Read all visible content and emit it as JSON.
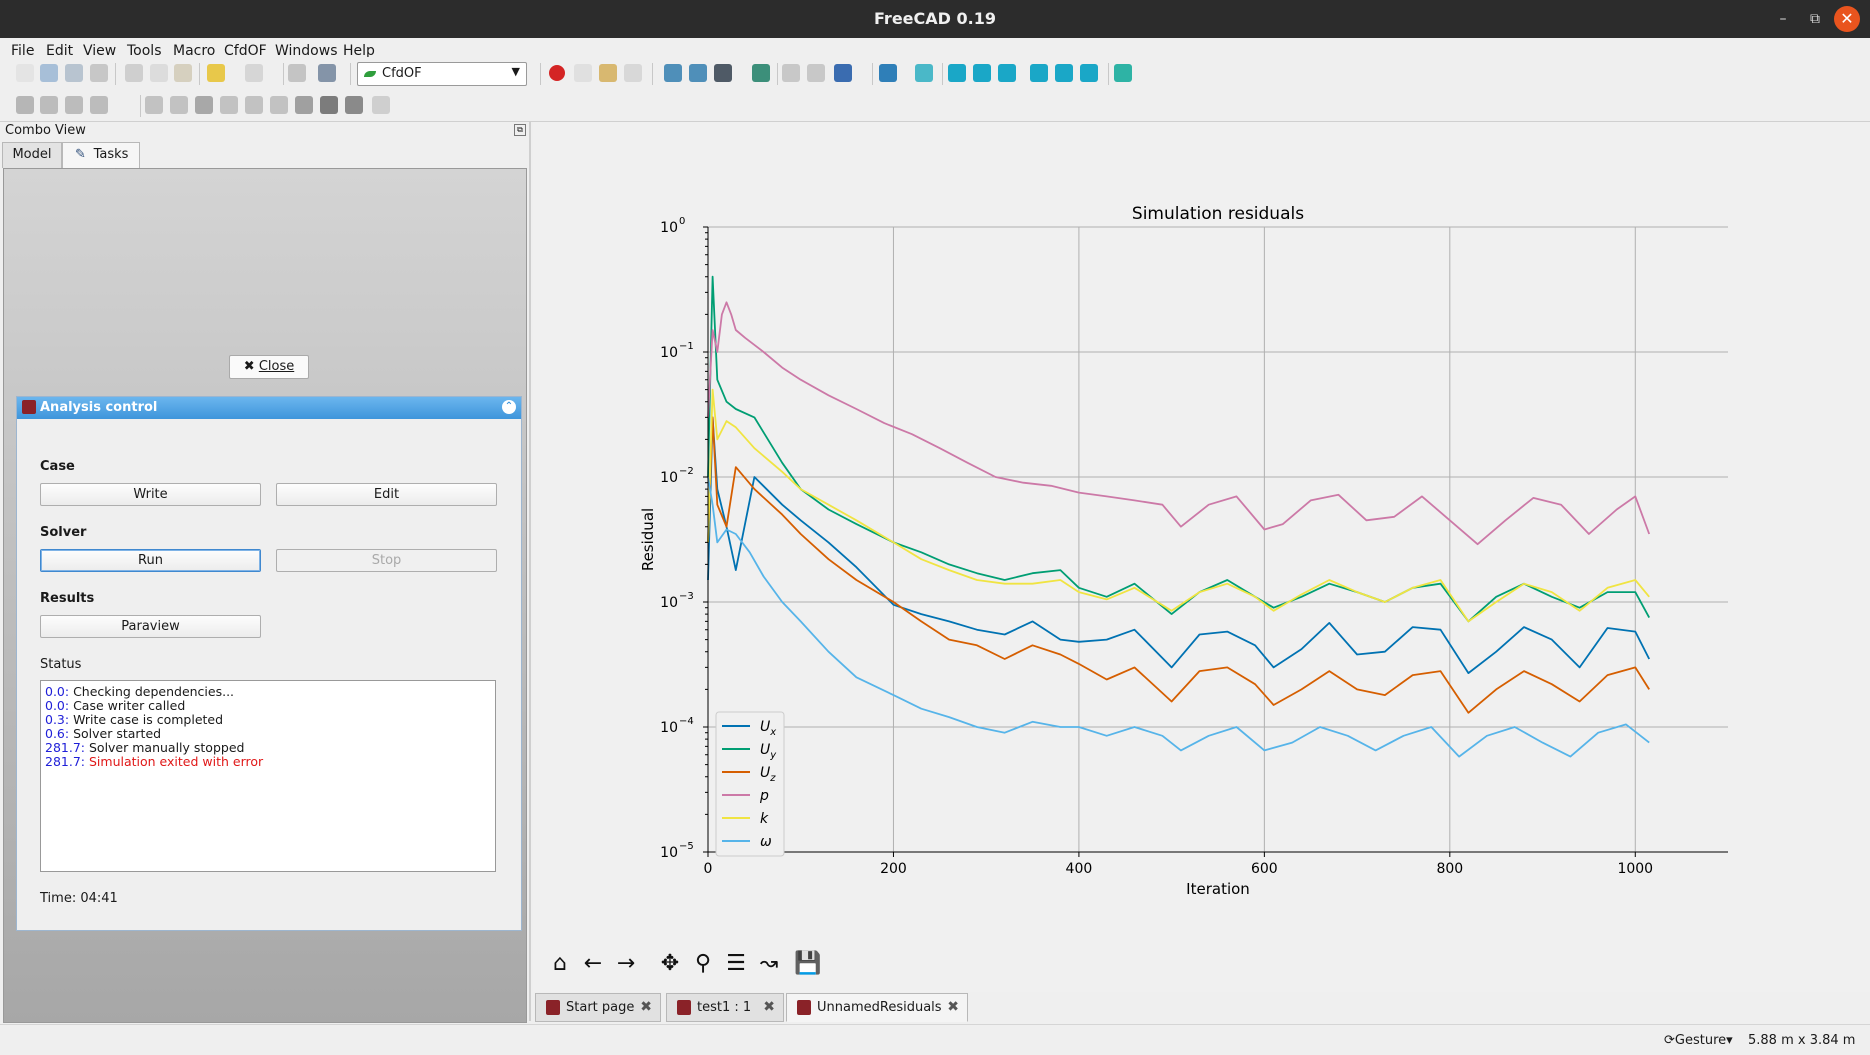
{
  "window": {
    "title": "FreeCAD 0.19"
  },
  "menu": [
    "File",
    "Edit",
    "View",
    "Tools",
    "Macro",
    "CfdOF",
    "Windows",
    "Help"
  ],
  "toolbar": {
    "workbench": "CfdOF"
  },
  "combo_view": {
    "title": "Combo View",
    "tabs": [
      {
        "label": "Model"
      },
      {
        "label": "Tasks"
      }
    ],
    "close_label": "Close"
  },
  "analysis": {
    "title": "Analysis control",
    "case_label": "Case",
    "write_label": "Write",
    "edit_label": "Edit",
    "solver_label": "Solver",
    "run_label": "Run",
    "stop_label": "Stop",
    "results_label": "Results",
    "paraview_label": "Paraview",
    "status_label": "Status",
    "status_lines": [
      {
        "t": "0.0:",
        "msg": "Checking dependencies...",
        "error": false
      },
      {
        "t": "0.0:",
        "msg": "Case writer called",
        "error": false
      },
      {
        "t": "0.3:",
        "msg": "Write case is completed",
        "error": false
      },
      {
        "t": "0.6:",
        "msg": "Solver started",
        "error": false
      },
      {
        "t": "281.7:",
        "msg": "Solver manually stopped",
        "error": false
      },
      {
        "t": "281.7:",
        "msg": "Simulation exited with error",
        "error": true
      }
    ],
    "time_label": "Time: 04:41"
  },
  "doc_tabs": [
    {
      "label": "Start page",
      "active": false
    },
    {
      "label": "test1 : 1",
      "active": false
    },
    {
      "label": "UnnamedResiduals",
      "active": true
    }
  ],
  "statusbar": {
    "navigation": "Gesture",
    "dimensions": "5.88 m x 3.84 m"
  },
  "chart_data": {
    "type": "line",
    "title": "Simulation residuals",
    "xlabel": "Iteration",
    "ylabel": "Residual",
    "xlim": [
      0,
      1100
    ],
    "ylim": [
      1e-05,
      1
    ],
    "yscale": "log",
    "xticks": [
      0,
      200,
      400,
      600,
      800,
      1000
    ],
    "yticks": [
      {
        "base": "10",
        "exp": "0",
        "v": 1
      },
      {
        "base": "10",
        "exp": "−1",
        "v": 0.1
      },
      {
        "base": "10",
        "exp": "−2",
        "v": 0.01
      },
      {
        "base": "10",
        "exp": "−3",
        "v": 0.001
      },
      {
        "base": "10",
        "exp": "−4",
        "v": 0.0001
      },
      {
        "base": "10",
        "exp": "−5",
        "v": 1e-05
      }
    ],
    "grid": true,
    "legend_position": "lower-left",
    "series": [
      {
        "name": "Ux",
        "sym": "U",
        "sub": "x",
        "color": "#0072b2",
        "x": [
          0,
          5,
          10,
          20,
          30,
          50,
          80,
          100,
          130,
          160,
          200,
          230,
          260,
          290,
          320,
          350,
          380,
          400,
          430,
          460,
          500,
          530,
          560,
          590,
          610,
          640,
          670,
          700,
          730,
          760,
          790,
          820,
          850,
          880,
          910,
          940,
          970,
          1000,
          1015
        ],
        "y": [
          0.0015,
          0.03,
          0.008,
          0.004,
          0.0018,
          0.01,
          0.006,
          0.0045,
          0.003,
          0.0019,
          0.00095,
          0.0008,
          0.0007,
          0.0006,
          0.00055,
          0.0007,
          0.0005,
          0.00048,
          0.0005,
          0.0006,
          0.0003,
          0.00055,
          0.00058,
          0.00045,
          0.0003,
          0.00042,
          0.00068,
          0.00038,
          0.0004,
          0.00063,
          0.0006,
          0.00027,
          0.0004,
          0.00063,
          0.0005,
          0.0003,
          0.00062,
          0.00058,
          0.00035
        ]
      },
      {
        "name": "Uy",
        "sym": "U",
        "sub": "y",
        "color": "#009e73",
        "x": [
          0,
          5,
          10,
          20,
          30,
          50,
          80,
          100,
          130,
          160,
          200,
          230,
          260,
          290,
          320,
          350,
          380,
          400,
          430,
          460,
          500,
          530,
          560,
          590,
          610,
          640,
          670,
          700,
          730,
          760,
          790,
          820,
          850,
          880,
          910,
          940,
          970,
          1000,
          1015
        ],
        "y": [
          0.01,
          0.4,
          0.06,
          0.04,
          0.035,
          0.03,
          0.013,
          0.008,
          0.0055,
          0.0042,
          0.003,
          0.0025,
          0.002,
          0.0017,
          0.0015,
          0.0017,
          0.0018,
          0.0013,
          0.0011,
          0.0014,
          0.0008,
          0.0012,
          0.0015,
          0.0011,
          0.0009,
          0.0011,
          0.0014,
          0.0012,
          0.001,
          0.0013,
          0.0014,
          0.0007,
          0.0011,
          0.0014,
          0.0011,
          0.0009,
          0.0012,
          0.0012,
          0.00075
        ]
      },
      {
        "name": "Uz",
        "sym": "U",
        "sub": "z",
        "color": "#d55e00",
        "x": [
          0,
          5,
          10,
          20,
          30,
          50,
          80,
          100,
          130,
          160,
          200,
          230,
          260,
          290,
          320,
          350,
          380,
          400,
          430,
          460,
          500,
          530,
          560,
          590,
          610,
          640,
          670,
          700,
          730,
          760,
          790,
          820,
          850,
          880,
          910,
          940,
          970,
          1000,
          1015
        ],
        "y": [
          0.003,
          0.03,
          0.006,
          0.004,
          0.012,
          0.008,
          0.005,
          0.0035,
          0.0022,
          0.0015,
          0.001,
          0.0007,
          0.0005,
          0.00045,
          0.00035,
          0.00045,
          0.00038,
          0.00032,
          0.00024,
          0.0003,
          0.00016,
          0.00028,
          0.0003,
          0.00022,
          0.00015,
          0.0002,
          0.00028,
          0.0002,
          0.00018,
          0.00026,
          0.00028,
          0.00013,
          0.0002,
          0.00028,
          0.00022,
          0.00016,
          0.00026,
          0.0003,
          0.0002
        ]
      },
      {
        "name": "p",
        "sym": "p",
        "sub": "",
        "color": "#cc79a7",
        "x": [
          0,
          5,
          10,
          15,
          20,
          25,
          30,
          40,
          60,
          80,
          100,
          130,
          160,
          190,
          220,
          250,
          280,
          310,
          340,
          370,
          400,
          430,
          460,
          490,
          510,
          540,
          570,
          600,
          620,
          650,
          680,
          710,
          740,
          770,
          800,
          830,
          860,
          890,
          920,
          950,
          980,
          1000,
          1015
        ],
        "y": [
          0.03,
          0.15,
          0.1,
          0.2,
          0.25,
          0.2,
          0.15,
          0.13,
          0.1,
          0.075,
          0.06,
          0.045,
          0.035,
          0.027,
          0.022,
          0.017,
          0.013,
          0.01,
          0.009,
          0.0085,
          0.0075,
          0.007,
          0.0065,
          0.006,
          0.004,
          0.006,
          0.007,
          0.0038,
          0.0042,
          0.0065,
          0.0072,
          0.0045,
          0.0048,
          0.007,
          0.0045,
          0.0029,
          0.0045,
          0.0068,
          0.006,
          0.0035,
          0.0055,
          0.007,
          0.0035
        ]
      },
      {
        "name": "k",
        "sym": "k",
        "sub": "",
        "color": "#f0e442",
        "x": [
          0,
          5,
          10,
          20,
          30,
          50,
          80,
          100,
          130,
          160,
          200,
          230,
          260,
          290,
          320,
          350,
          380,
          400,
          430,
          460,
          500,
          530,
          560,
          590,
          610,
          640,
          670,
          700,
          730,
          760,
          790,
          820,
          850,
          880,
          910,
          940,
          970,
          1000,
          1015
        ],
        "y": [
          0.003,
          0.05,
          0.02,
          0.028,
          0.025,
          0.017,
          0.011,
          0.008,
          0.006,
          0.0045,
          0.003,
          0.0022,
          0.0018,
          0.0015,
          0.0014,
          0.0014,
          0.0015,
          0.0012,
          0.00105,
          0.0013,
          0.00085,
          0.0012,
          0.0014,
          0.0011,
          0.00085,
          0.00115,
          0.0015,
          0.0012,
          0.001,
          0.0013,
          0.0015,
          0.0007,
          0.001,
          0.0014,
          0.0012,
          0.00085,
          0.0013,
          0.0015,
          0.0011
        ]
      },
      {
        "name": "ω",
        "sym": "ω",
        "sub": "",
        "color": "#56b4e9",
        "x": [
          0,
          5,
          10,
          20,
          30,
          45,
          60,
          80,
          100,
          130,
          160,
          200,
          230,
          260,
          290,
          320,
          350,
          380,
          400,
          430,
          460,
          490,
          510,
          540,
          570,
          600,
          630,
          660,
          690,
          720,
          750,
          780,
          810,
          840,
          870,
          900,
          930,
          960,
          990,
          1015
        ],
        "y": [
          0.01,
          0.006,
          0.003,
          0.0038,
          0.0035,
          0.0025,
          0.0016,
          0.001,
          0.0007,
          0.0004,
          0.00025,
          0.00018,
          0.00014,
          0.00012,
          0.0001,
          9e-05,
          0.00011,
          0.0001,
          0.0001,
          8.5e-05,
          0.0001,
          8.5e-05,
          6.5e-05,
          8.5e-05,
          0.0001,
          6.5e-05,
          7.5e-05,
          0.0001,
          8.5e-05,
          6.5e-05,
          8.5e-05,
          0.0001,
          5.8e-05,
          8.5e-05,
          0.0001,
          7.5e-05,
          5.8e-05,
          9e-05,
          0.000105,
          7.5e-05
        ]
      }
    ]
  }
}
